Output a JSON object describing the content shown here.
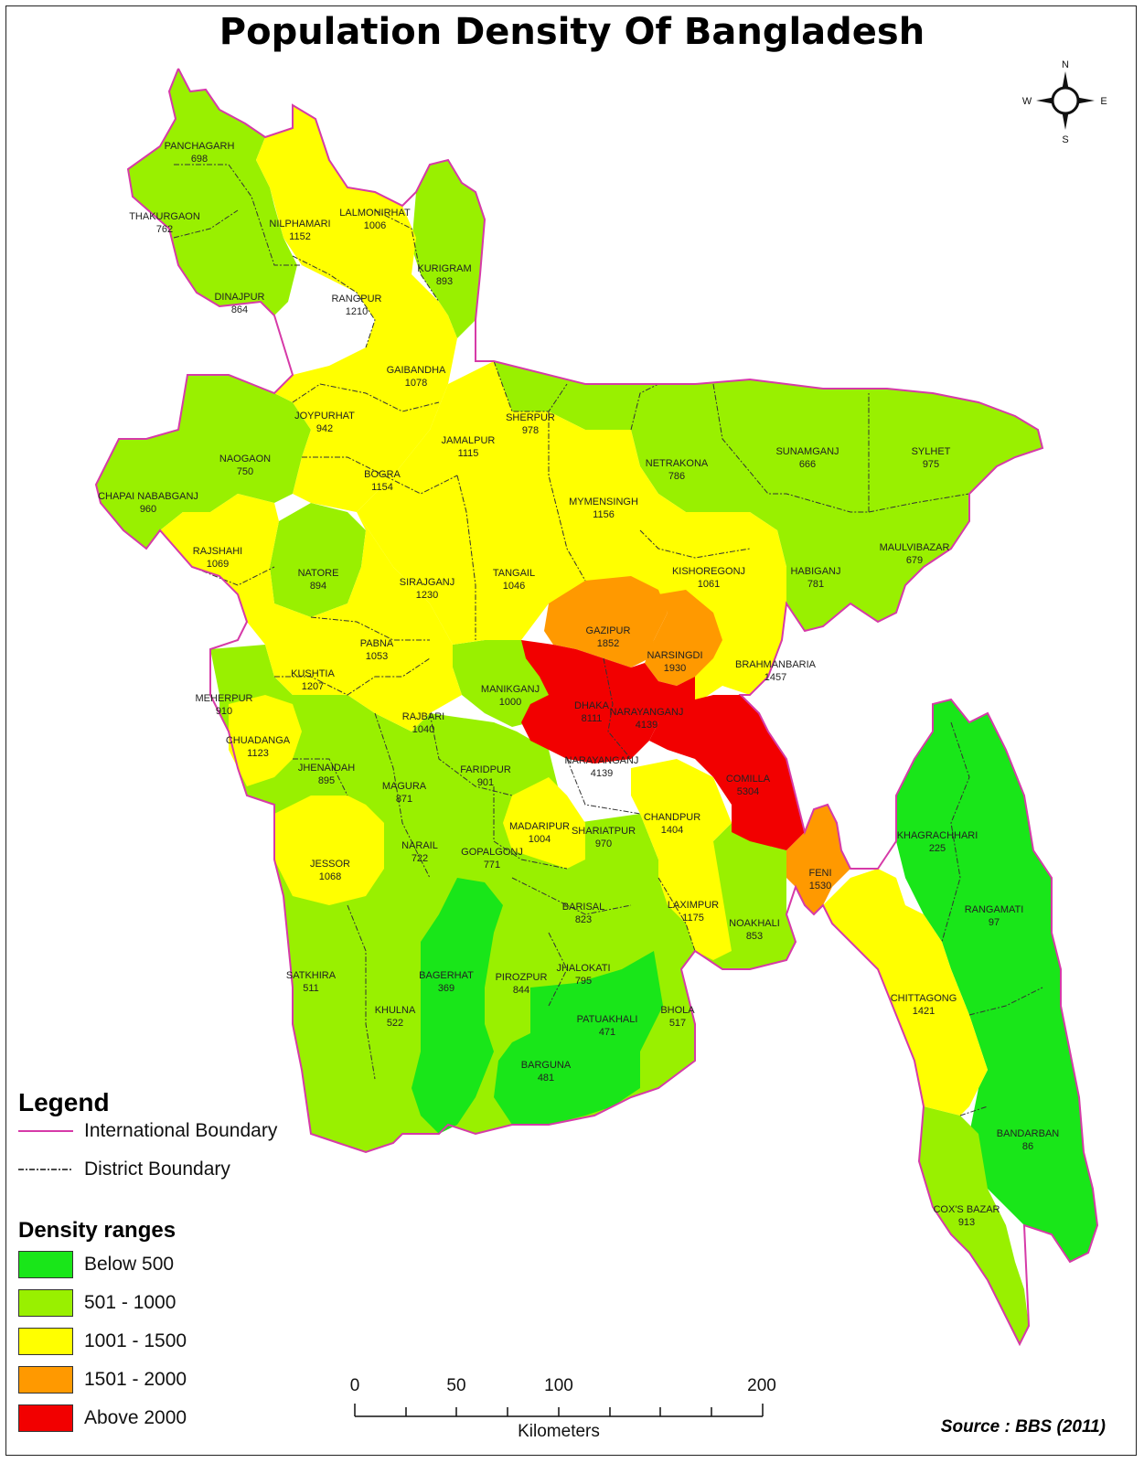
{
  "title": "Population Density Of Bangladesh",
  "compass": {
    "n": "N",
    "s": "S",
    "e": "E",
    "w": "W"
  },
  "legend": {
    "title": "Legend",
    "international_boundary": "International Boundary",
    "district_boundary": "District Boundary",
    "international_boundary_color": "#d63aa8",
    "density_title": "Density ranges",
    "ranges": [
      {
        "label": "Below 500",
        "color": "#19e619"
      },
      {
        "label": "501 - 1000",
        "color": "#99f000"
      },
      {
        "label": "1001 - 1500",
        "color": "#ffff00"
      },
      {
        "label": "1501 - 2000",
        "color": "#ff9900"
      },
      {
        "label": "Above 2000",
        "color": "#f20000"
      }
    ]
  },
  "scale": {
    "ticks": [
      "0",
      "50",
      "100",
      "200"
    ],
    "units": "Kilometers"
  },
  "source": "Source : BBS (2011)",
  "districts": [
    {
      "name": "PANCHAGARH",
      "density": "698"
    },
    {
      "name": "THAKURGAON",
      "density": "762"
    },
    {
      "name": "NILPHAMARI",
      "density": "1152"
    },
    {
      "name": "LALMONIRHAT",
      "density": "1006"
    },
    {
      "name": "KURIGRAM",
      "density": "893"
    },
    {
      "name": "DINAJPUR",
      "density": "864"
    },
    {
      "name": "RANGPUR",
      "density": "1210"
    },
    {
      "name": "GAIBANDHA",
      "density": "1078"
    },
    {
      "name": "JOYPURHAT",
      "density": "942"
    },
    {
      "name": "NAOGAON",
      "density": "750"
    },
    {
      "name": "BOGRA",
      "density": "1154"
    },
    {
      "name": "JAMALPUR",
      "density": "1115"
    },
    {
      "name": "SHERPUR",
      "density": "978"
    },
    {
      "name": "NETRAKONA",
      "density": "786"
    },
    {
      "name": "SUNAMGANJ",
      "density": "666"
    },
    {
      "name": "SYLHET",
      "density": "975"
    },
    {
      "name": "CHAPAI NABABGANJ",
      "density": "960"
    },
    {
      "name": "MYMENSINGH",
      "density": "1156"
    },
    {
      "name": "MAULVIBAZAR",
      "density": "679"
    },
    {
      "name": "RAJSHAHI",
      "density": "1069"
    },
    {
      "name": "NATORE",
      "density": "894"
    },
    {
      "name": "SIRAJGANJ",
      "density": "1230"
    },
    {
      "name": "TANGAIL",
      "density": "1046"
    },
    {
      "name": "KISHOREGONJ",
      "density": "1061"
    },
    {
      "name": "HABIGANJ",
      "density": "781"
    },
    {
      "name": "GAZIPUR",
      "density": "1852"
    },
    {
      "name": "PABNA",
      "density": "1053"
    },
    {
      "name": "NARSINGDI",
      "density": "1930"
    },
    {
      "name": "BRAHMANBARIA",
      "density": "1457"
    },
    {
      "name": "KUSHTIA",
      "density": "1207"
    },
    {
      "name": "MANIKGANJ",
      "density": "1000"
    },
    {
      "name": "MEHERPUR",
      "density": "910"
    },
    {
      "name": "DHAKA",
      "density": "8111"
    },
    {
      "name": "NARAYANGANJ",
      "density": "4139"
    },
    {
      "name": "RAJBARI",
      "density": "1040"
    },
    {
      "name": "CHUADANGA",
      "density": "1123"
    },
    {
      "name": "NARAYANGANJ",
      "density": "4139"
    },
    {
      "name": "COMILLA",
      "density": "5304"
    },
    {
      "name": "JHENAIDAH",
      "density": "895"
    },
    {
      "name": "FARIDPUR",
      "density": "901"
    },
    {
      "name": "MAGURA",
      "density": "871"
    },
    {
      "name": "CHANDPUR",
      "density": "1404"
    },
    {
      "name": "MADARIPUR",
      "density": "1004"
    },
    {
      "name": "SHARIATPUR",
      "density": "970"
    },
    {
      "name": "KHAGRACHHARI",
      "density": "225"
    },
    {
      "name": "NARAIL",
      "density": "722"
    },
    {
      "name": "GOPALGONJ",
      "density": "771"
    },
    {
      "name": "JESSOR",
      "density": "1068"
    },
    {
      "name": "FENI",
      "density": "1530"
    },
    {
      "name": "BARISAL",
      "density": "823"
    },
    {
      "name": "LAXIMPUR",
      "density": "1175"
    },
    {
      "name": "RANGAMATI",
      "density": "97"
    },
    {
      "name": "NOAKHALI",
      "density": "853"
    },
    {
      "name": "SATKHIRA",
      "density": "511"
    },
    {
      "name": "BAGERHAT",
      "density": "369"
    },
    {
      "name": "PIROZPUR",
      "density": "844"
    },
    {
      "name": "JHALOKATI",
      "density": "795"
    },
    {
      "name": "CHITTAGONG",
      "density": "1421"
    },
    {
      "name": "KHULNA",
      "density": "522"
    },
    {
      "name": "BHOLA",
      "density": "517"
    },
    {
      "name": "PATUAKHALI",
      "density": "471"
    },
    {
      "name": "BARGUNA",
      "density": "481"
    },
    {
      "name": "BANDARBAN",
      "density": "86"
    },
    {
      "name": "COX'S BAZAR",
      "density": "913"
    }
  ]
}
